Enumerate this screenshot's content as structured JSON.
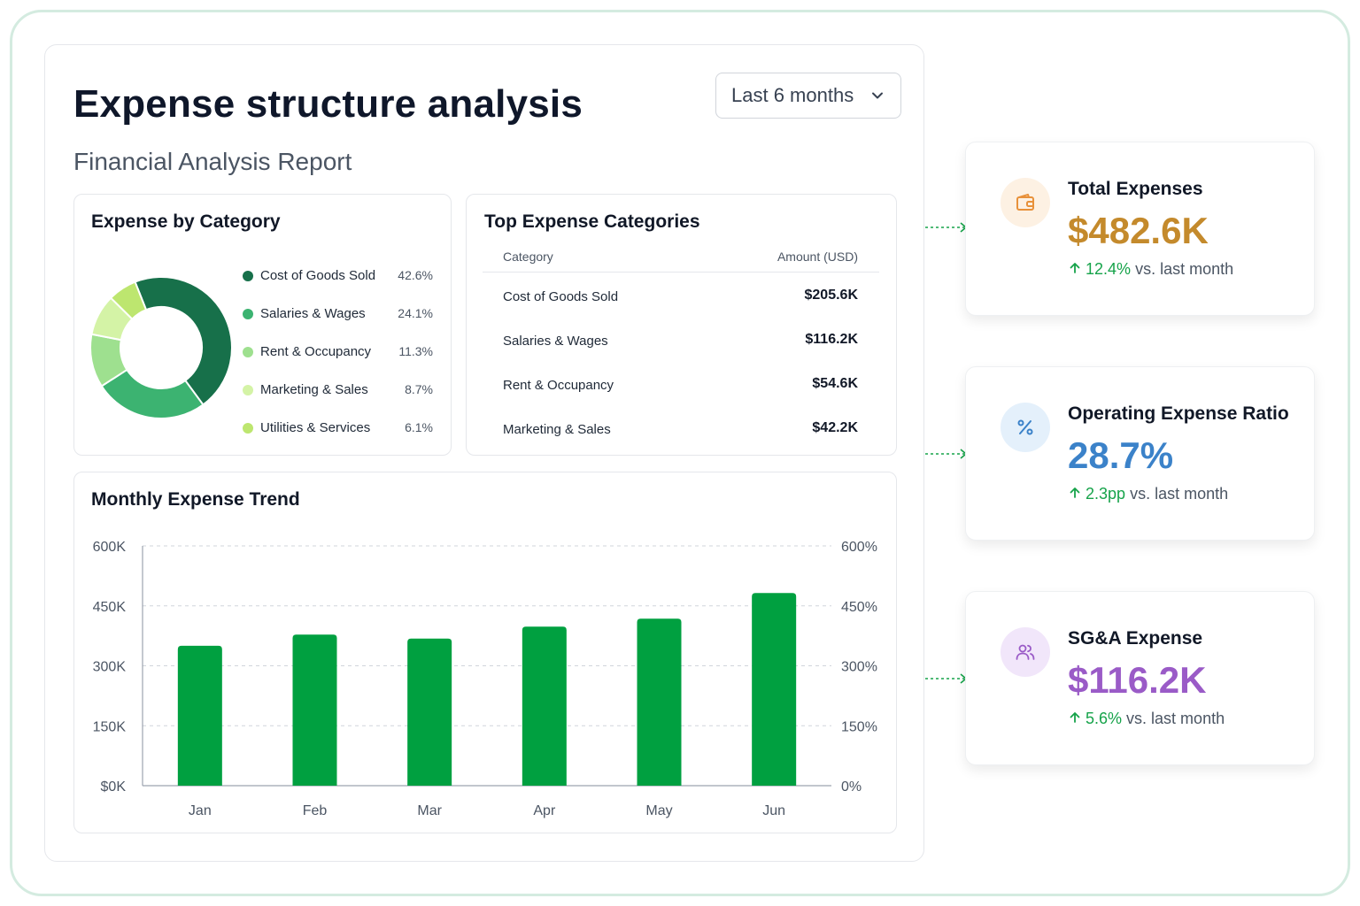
{
  "header": {
    "title": "Expense structure analysis",
    "subtitle": "Financial Analysis Report",
    "range_label": "Last 6 months"
  },
  "category_card": {
    "title": "Expense by Category",
    "items": [
      {
        "label": "Cost of Goods Sold",
        "pct": "42.6%",
        "value": 42.6,
        "color": "#17704a"
      },
      {
        "label": "Salaries & Wages",
        "pct": "24.1%",
        "value": 24.1,
        "color": "#3cb371"
      },
      {
        "label": "Rent & Occupancy",
        "pct": "11.3%",
        "value": 11.3,
        "color": "#9ee08f"
      },
      {
        "label": "Marketing & Sales",
        "pct": "8.7%",
        "value": 8.7,
        "color": "#d4f3a6"
      },
      {
        "label": "Utilities & Services",
        "pct": "6.1%",
        "value": 6.1,
        "color": "#bde66f"
      }
    ]
  },
  "top_card": {
    "title": "Top Expense Categories",
    "col_category": "Category",
    "col_amount": "Amount (USD)",
    "rows": [
      {
        "category": "Cost of Goods Sold",
        "amount": "$205.6K"
      },
      {
        "category": "Salaries & Wages",
        "amount": "$116.2K"
      },
      {
        "category": "Rent & Occupancy",
        "amount": "$54.6K"
      },
      {
        "category": "Marketing & Sales",
        "amount": "$42.2K"
      }
    ]
  },
  "trend_card": {
    "title": "Monthly Expense Trend"
  },
  "chart_data": {
    "type": "bar",
    "categories": [
      "Jan",
      "Feb",
      "Mar",
      "Apr",
      "May",
      "Jun"
    ],
    "values": [
      350,
      378,
      368,
      398,
      418,
      482
    ],
    "ylim": [
      0,
      600
    ],
    "left_ticks": [
      "$0K",
      "150K",
      "300K",
      "450K",
      "600K"
    ],
    "right_ticks": [
      "0%",
      "150%",
      "300%",
      "450%",
      "600%"
    ],
    "grid": true,
    "bar_color": "#00a040",
    "title": "Monthly Expense Trend",
    "xlabel": "",
    "ylabel": ""
  },
  "kpis": [
    {
      "title": "Total Expenses",
      "value": "$482.6K",
      "change_num": "12.4%",
      "change_text": "vs. last month",
      "color": "#c48a2c",
      "icon": "wallet-icon"
    },
    {
      "title": "Operating Expense Ratio",
      "value": "28.7%",
      "change_num": "2.3pp",
      "change_text": "vs. last month",
      "color": "#3b82c9",
      "icon": "percent-icon"
    },
    {
      "title": "SG&A Expense",
      "value": "$116.2K",
      "change_num": "5.6%",
      "change_text": "vs. last month",
      "color": "#9a5bc7",
      "icon": "users-icon"
    }
  ]
}
